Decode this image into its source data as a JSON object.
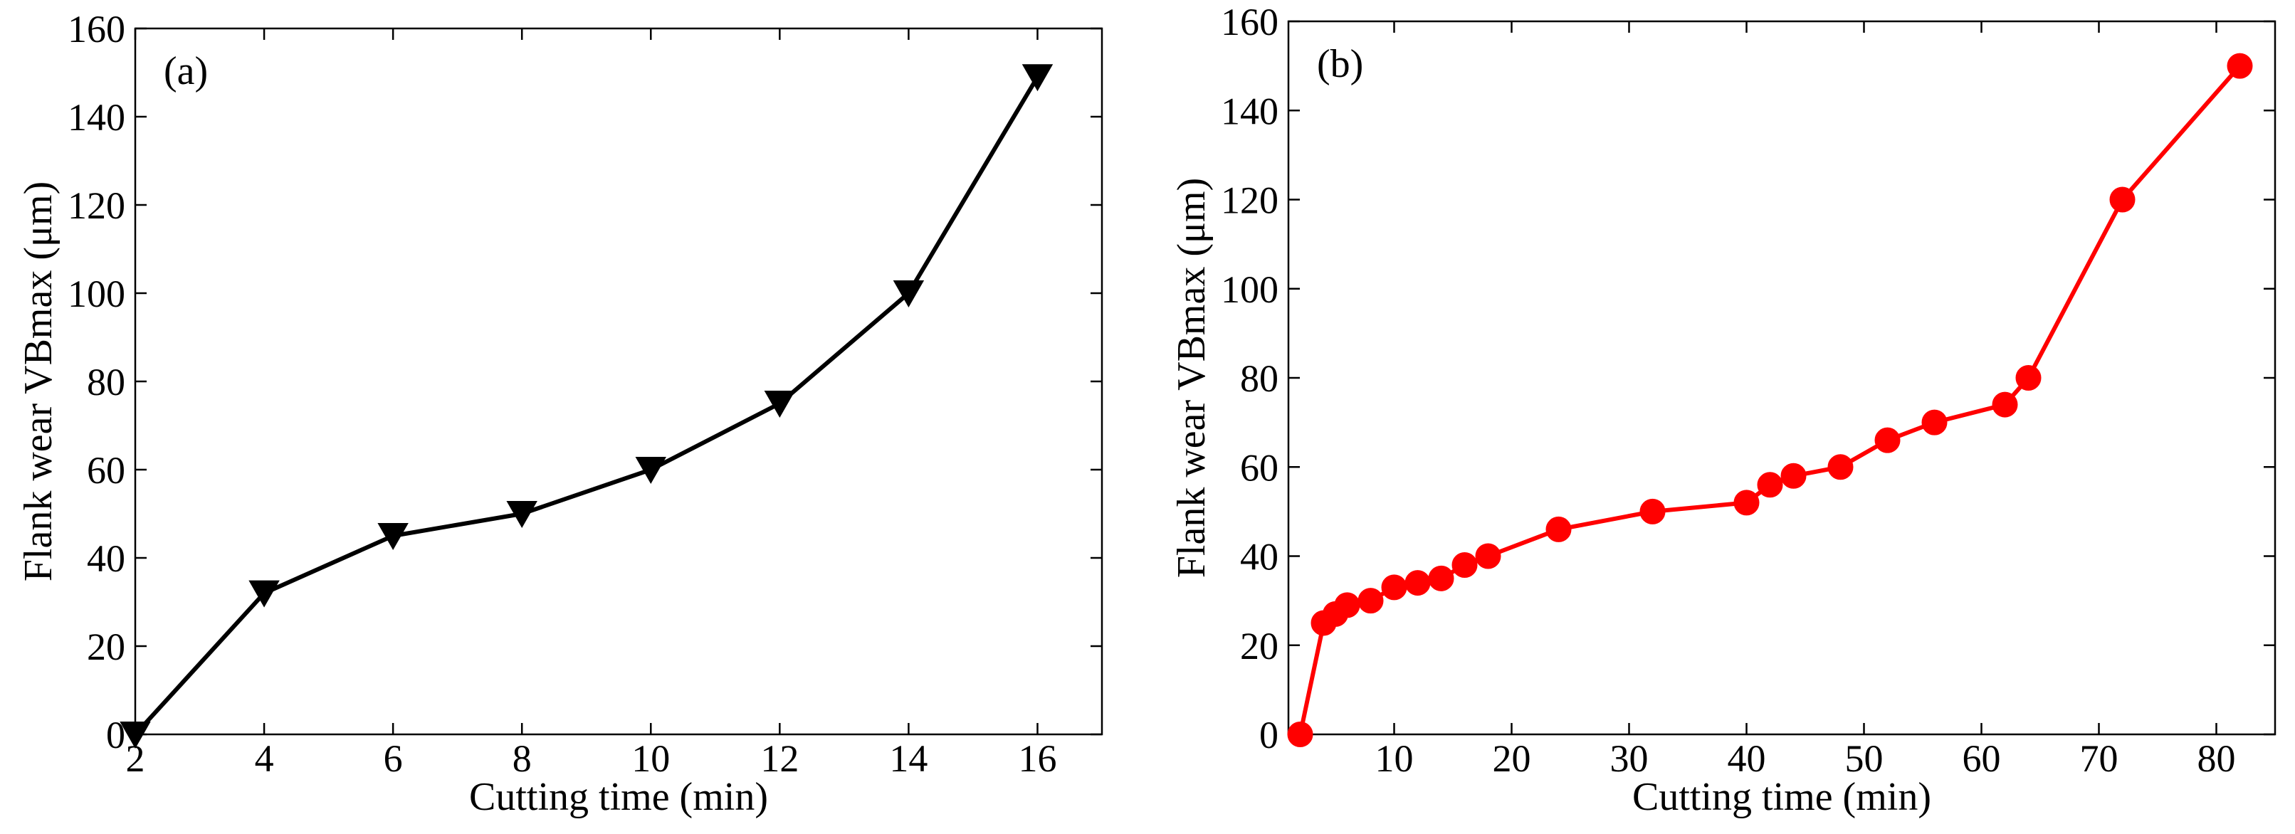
{
  "chart_data": [
    {
      "type": "line",
      "panel_label": "(a)",
      "xlabel": "Cutting time (min)",
      "ylabel": "Flank wear VBmax (μm)",
      "xlim": [
        2,
        17
      ],
      "ylim": [
        0,
        160
      ],
      "xticks": [
        2,
        4,
        6,
        8,
        10,
        12,
        14,
        16
      ],
      "yticks": [
        0,
        20,
        40,
        60,
        80,
        100,
        120,
        140,
        160
      ],
      "series": [
        {
          "name": "Flank wear",
          "marker": "triangle-down",
          "color": "#000000",
          "x": [
            2,
            4,
            6,
            8,
            10,
            12,
            14,
            16
          ],
          "y": [
            0,
            32,
            45,
            50,
            60,
            75,
            100,
            149
          ]
        }
      ]
    },
    {
      "type": "line",
      "panel_label": "(b)",
      "xlabel": "Cutting time (min)",
      "ylabel": "Flank wear VBmax (μm)",
      "xlim": [
        1,
        85
      ],
      "ylim": [
        0,
        160
      ],
      "xticks": [
        10,
        20,
        30,
        40,
        50,
        60,
        70,
        80
      ],
      "yticks": [
        0,
        20,
        40,
        60,
        80,
        100,
        120,
        140,
        160
      ],
      "series": [
        {
          "name": "Flank wear",
          "marker": "circle",
          "color": "#ff0000",
          "x": [
            2,
            4,
            5,
            6,
            8,
            10,
            12,
            14,
            16,
            18,
            24,
            32,
            40,
            42,
            44,
            48,
            52,
            56,
            62,
            64,
            72,
            82
          ],
          "y": [
            0,
            25,
            27,
            29,
            30,
            33,
            34,
            35,
            38,
            40,
            46,
            50,
            52,
            56,
            58,
            60,
            66,
            70,
            74,
            80,
            120,
            150
          ]
        }
      ]
    }
  ]
}
